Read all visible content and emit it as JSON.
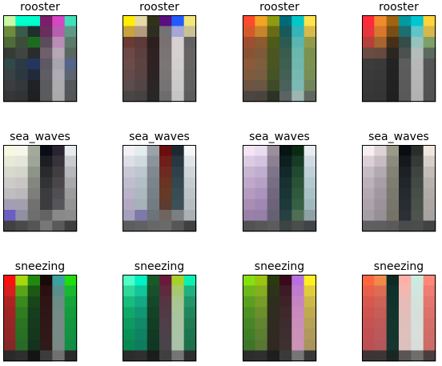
{
  "chart_data": [
    {
      "type": "heatmap",
      "title": "rooster",
      "columns": 6,
      "rows": 8,
      "cells": [
        [
          "#c9f7a5",
          "#00ffcc",
          "#00ffcc",
          "#7b1d6b",
          "#d645c4",
          "#40e0b9"
        ],
        [
          "#6e8c3b",
          "#3a5a4a",
          "#1f2f2f",
          "#6a2d5e",
          "#b65fb0",
          "#5d9a86"
        ],
        [
          "#4f6b39",
          "#3c4d3a",
          "#1d6b1f",
          "#5a4c5a",
          "#b98eb6",
          "#5b7a6a"
        ],
        [
          "#353c35",
          "#3f4641",
          "#2a2b2d",
          "#6e5f6a",
          "#b5a7b4",
          "#5a6760"
        ],
        [
          "#2f4a48",
          "#2d3a46",
          "#22365e",
          "#5d5862",
          "#a8a4ad",
          "#55648a"
        ],
        [
          "#384144",
          "#2b3840",
          "#22293a",
          "#5f5c64",
          "#adabb3",
          "#5c6570"
        ],
        [
          "#3b3d40",
          "#34383a",
          "#202124",
          "#5b5b5e",
          "#acacae",
          "#54585b"
        ],
        [
          "#353638",
          "#323335",
          "#1f2022",
          "#5a5b5c",
          "#a9aaab",
          "#545556"
        ]
      ]
    },
    {
      "type": "heatmap",
      "title": "rooster",
      "columns": 6,
      "rows": 8,
      "cells": [
        [
          "#ffee00",
          "#e6d9a8",
          "#2f3318",
          "#5a0e7f",
          "#1f5bff",
          "#f2e67a"
        ],
        [
          "#c9a23b",
          "#b49a7e",
          "#2c2e1f",
          "#747274",
          "#a4a7d8",
          "#c9c093"
        ],
        [
          "#6a3a34",
          "#5d3a39",
          "#2e1f1f",
          "#797071",
          "#d8cfd0",
          "#626060"
        ],
        [
          "#6e4846",
          "#5b403f",
          "#2f2222",
          "#7a7475",
          "#d5d0d1",
          "#656363"
        ],
        [
          "#6c4c4b",
          "#5b4342",
          "#2e2222",
          "#7b7676",
          "#d3cfcf",
          "#666363"
        ],
        [
          "#634b4b",
          "#584443",
          "#2c2424",
          "#787575",
          "#cfcccc",
          "#636161"
        ],
        [
          "#5b4d4d",
          "#524545",
          "#2b2525",
          "#757373",
          "#cbc9c9",
          "#606060"
        ],
        [
          "#4a4646",
          "#464242",
          "#282626",
          "#6e6d6d",
          "#c6c5c5",
          "#5c5c5c"
        ]
      ]
    },
    {
      "type": "heatmap",
      "title": "rooster",
      "columns": 6,
      "rows": 8,
      "cells": [
        [
          "#ff4a2e",
          "#f2a424",
          "#8f9b10",
          "#006a7a",
          "#00c8c8",
          "#ffe24d"
        ],
        [
          "#d6592b",
          "#c8842a",
          "#6a6b14",
          "#175a5b",
          "#35b4ba",
          "#d7b84a"
        ],
        [
          "#9e4e31",
          "#8e5a30",
          "#4e5a1a",
          "#2a5a50",
          "#5ab5b0",
          "#8f9b4a"
        ],
        [
          "#8a5233",
          "#7f5a38",
          "#4b5520",
          "#3a5c4d",
          "#6cb7ad",
          "#7b914d"
        ],
        [
          "#8a5a3a",
          "#7d5e3d",
          "#4a5522",
          "#3e5e50",
          "#70b8ae",
          "#7a9150"
        ],
        [
          "#7e5a3f",
          "#785d42",
          "#465326",
          "#445f55",
          "#75b9b1",
          "#788e55"
        ],
        [
          "#6d5443",
          "#6a5643",
          "#3f4b28",
          "#49615a",
          "#7bbab4",
          "#72855a"
        ],
        [
          "#4c4540",
          "#4a443f",
          "#2c3224",
          "#5a6462",
          "#9fb5b1",
          "#5f6760"
        ]
      ]
    },
    {
      "type": "heatmap",
      "title": "rooster",
      "columns": 6,
      "rows": 8,
      "cells": [
        [
          "#ff2a3a",
          "#f28a2e",
          "#a06410",
          "#009aa0",
          "#00c6cf",
          "#ffd33a"
        ],
        [
          "#e8343b",
          "#d8772e",
          "#7a4d14",
          "#1c6e73",
          "#5ec5c9",
          "#d8b64a"
        ],
        [
          "#b53f39",
          "#a8652f",
          "#463019",
          "#354c48",
          "#97c3be",
          "#7ea067"
        ],
        [
          "#6c4c42",
          "#67493d",
          "#2a2620",
          "#4b514f",
          "#b3bdbb",
          "#5b6a5e"
        ],
        [
          "#3d3c3d",
          "#3b3a3b",
          "#232323",
          "#5c5c5c",
          "#b8b8b8",
          "#555555"
        ],
        [
          "#3a3a3b",
          "#383839",
          "#222222",
          "#5b5b5b",
          "#b6b6b6",
          "#545454"
        ],
        [
          "#383839",
          "#363637",
          "#212121",
          "#5a5a5a",
          "#b4b4b4",
          "#535353"
        ],
        [
          "#363637",
          "#353536",
          "#202020",
          "#595959",
          "#b2b2b2",
          "#525252"
        ]
      ]
    },
    {
      "type": "heatmap",
      "title": "sea_waves",
      "columns": 6,
      "rows": 8,
      "cells": [
        [
          "#f8f8e2",
          "#f6f6e9",
          "#a6aa9d",
          "#0a0c17",
          "#2a2431",
          "#e7ebef"
        ],
        [
          "#e6ead6",
          "#e3e6d9",
          "#9ea69a",
          "#1d1e22",
          "#37333a",
          "#c8ccd0"
        ],
        [
          "#d8dacd",
          "#d4d6cc",
          "#8d9488",
          "#2a2a2c",
          "#413d41",
          "#b6b8bb"
        ],
        [
          "#cdcbc8",
          "#c7c6c4",
          "#84877f",
          "#333235",
          "#4a4649",
          "#a9a9ab"
        ],
        [
          "#c1bcc0",
          "#bdb8bc",
          "#7e7f7a",
          "#3c3b3e",
          "#524f52",
          "#9e9c9f"
        ],
        [
          "#a49eb4",
          "#a39fae",
          "#71726f",
          "#3c3c3f",
          "#56565a",
          "#949494"
        ],
        [
          "#6a5ec2",
          "#918fa4",
          "#6d6f6c",
          "#636363",
          "#898989",
          "#8c8c8c"
        ],
        [
          "#414141",
          "#4a4a4a",
          "#555555",
          "#777777",
          "#5a5a5a",
          "#3e3e3e"
        ]
      ]
    },
    {
      "type": "heatmap",
      "title": "sea_waves",
      "columns": 6,
      "rows": 8,
      "cells": [
        [
          "#f2f0f4",
          "#e3ecee",
          "#9aa2aa",
          "#6b0e0e",
          "#1e2a33",
          "#f4f6f8"
        ],
        [
          "#dcdfe6",
          "#cfd9de",
          "#8b949b",
          "#6f1e18",
          "#283742",
          "#dfe4e8"
        ],
        [
          "#c9c9d6",
          "#bcc7ce",
          "#80898f",
          "#6d2a20",
          "#2f4249",
          "#d0d6da"
        ],
        [
          "#c1bcd0",
          "#b3bfc6",
          "#7a848a",
          "#6a3322",
          "#34484f",
          "#c6cdd1"
        ],
        [
          "#bbb3c9",
          "#acb8bf",
          "#768086",
          "#663a27",
          "#384d54",
          "#bec5c9"
        ],
        [
          "#b3a9c2",
          "#a6b1b8",
          "#727c83",
          "#5c3c2e",
          "#3b5058",
          "#b7bec2"
        ],
        [
          "#a5a1bd",
          "#7d79a8",
          "#6c7379",
          "#6f6460",
          "#7b7f82",
          "#aab0b4"
        ],
        [
          "#5c5d5f",
          "#606163",
          "#666769",
          "#6a6a6a",
          "#555657",
          "#3f4041"
        ]
      ]
    },
    {
      "type": "heatmap",
      "title": "sea_waves",
      "columns": 6,
      "rows": 8,
      "cells": [
        [
          "#f4e4f4",
          "#e8dcf0",
          "#9b8f9e",
          "#081314",
          "#0a2a12",
          "#e7ecf0"
        ],
        [
          "#dccbe2",
          "#d4c2e0",
          "#8c8193",
          "#0e1f20",
          "#173b26",
          "#cfdbe1"
        ],
        [
          "#c8b5d2",
          "#c0aed0",
          "#7f7589",
          "#13282a",
          "#21492f",
          "#bed1d6"
        ],
        [
          "#bfa8c9",
          "#b6a0c6",
          "#786e83",
          "#173031",
          "#2a5237",
          "#b2c9ce"
        ],
        [
          "#b69bc0",
          "#ad94be",
          "#72687e",
          "#1a3536",
          "#305a3c",
          "#a9c2c6"
        ],
        [
          "#a98db5",
          "#a188b4",
          "#6c6379",
          "#1d393a",
          "#366042",
          "#a1b9bd"
        ],
        [
          "#9a80a8",
          "#9580a8",
          "#666073",
          "#28403f",
          "#506d56",
          "#8ea2a5"
        ],
        [
          "#525154",
          "#575659",
          "#5c5b5e",
          "#3e4444",
          "#4a4f4b",
          "#414446"
        ]
      ]
    },
    {
      "type": "heatmap",
      "title": "sea_waves",
      "columns": 6,
      "rows": 8,
      "cells": [
        [
          "#f7eef2",
          "#dfd2d6",
          "#9b9a88",
          "#0b0d13",
          "#2a2e2a",
          "#f0e6de"
        ],
        [
          "#dccfd6",
          "#c6bcc2",
          "#8d8b7e",
          "#16191c",
          "#353a36",
          "#d7cec8"
        ],
        [
          "#c6bcc4",
          "#b2aab0",
          "#848276",
          "#1d2024",
          "#3e443f",
          "#c3bcb7"
        ],
        [
          "#bab1b9",
          "#a79fa6",
          "#7f7d72",
          "#222529",
          "#434a44",
          "#b8b2ae"
        ],
        [
          "#b2a9b2",
          "#a098a0",
          "#7b796e",
          "#26292d",
          "#474e48",
          "#b1aca8"
        ],
        [
          "#aca3ac",
          "#9b939b",
          "#78766b",
          "#292c30",
          "#4a514b",
          "#aca7a4"
        ],
        [
          "#a69ea6",
          "#969096",
          "#757368",
          "#2c2f33",
          "#4d544e",
          "#a7a3a0"
        ],
        [
          "#5f5e60",
          "#5e5d5f",
          "#5a5a59",
          "#494b4d",
          "#4a4d4b",
          "#414243"
        ]
      ]
    },
    {
      "type": "heatmap",
      "title": "sneezing",
      "columns": 6,
      "rows": 8,
      "cells": [
        [
          "#ff1010",
          "#a8d810",
          "#1f8a0e",
          "#1a0a0a",
          "#3aa0a0",
          "#1edc10"
        ],
        [
          "#d81e1e",
          "#5aa41a",
          "#1c5a14",
          "#2a1010",
          "#5a8e8a",
          "#18b82e"
        ],
        [
          "#b02222",
          "#3a8a1e",
          "#18461a",
          "#2e1414",
          "#6c8c86",
          "#14a43a"
        ],
        [
          "#a02424",
          "#307c20",
          "#163e1c",
          "#2f1616",
          "#738b86",
          "#139b3e"
        ],
        [
          "#972626",
          "#2b7522",
          "#153a1d",
          "#301717",
          "#768a86",
          "#129640"
        ],
        [
          "#902727",
          "#287023",
          "#14371e",
          "#301818",
          "#788a86",
          "#129242"
        ],
        [
          "#852727",
          "#2a6a26",
          "#13331f",
          "#2f1919",
          "#7a8985",
          "#138d44"
        ],
        [
          "#2a2a2a",
          "#2e2e2e",
          "#141414",
          "#3c3c3c",
          "#707070",
          "#2a2a2a"
        ]
      ]
    },
    {
      "type": "heatmap",
      "title": "sneezing",
      "columns": 6,
      "rows": 8,
      "cells": [
        [
          "#4fffc6",
          "#00f2c4",
          "#1a5a2a",
          "#6a1a3a",
          "#a8d02a",
          "#0af0b0"
        ],
        [
          "#2fd89a",
          "#12c49a",
          "#17502a",
          "#5e2a3e",
          "#a8c870",
          "#1fb07f"
        ],
        [
          "#19bc7c",
          "#14a884",
          "#154829",
          "#573442",
          "#a9c690",
          "#229468"
        ],
        [
          "#10a86a",
          "#129674",
          "#134227",
          "#523a45",
          "#a9c59c",
          "#21855c"
        ],
        [
          "#0c9a60",
          "#118a6a",
          "#123e26",
          "#4f3e47",
          "#a9c4a2",
          "#1f7c55"
        ],
        [
          "#0a9158",
          "#108264",
          "#113a25",
          "#4c4148",
          "#a9c4a6",
          "#1d7550"
        ],
        [
          "#098952",
          "#0f7c5f",
          "#103724",
          "#4a4349",
          "#a9c3a8",
          "#1c704c"
        ],
        [
          "#2c2c2c",
          "#2e302e",
          "#1a1d1b",
          "#3f3f3f",
          "#757575",
          "#2d2f2e"
        ]
      ]
    },
    {
      "type": "heatmap",
      "title": "sneezing",
      "columns": 6,
      "rows": 8,
      "cells": [
        [
          "#86e010",
          "#9ac410",
          "#2a3a10",
          "#3a0a1a",
          "#b870e0",
          "#ffee22"
        ],
        [
          "#6cb81a",
          "#84ad20",
          "#2c3318",
          "#3c1a26",
          "#c07ccc",
          "#e0cc3a"
        ],
        [
          "#5aa020",
          "#769d28",
          "#2d2f1c",
          "#3d2329",
          "#c684c4",
          "#ccb848"
        ],
        [
          "#4e9024",
          "#6a8f2c",
          "#2e2d1f",
          "#3e282c",
          "#c98abe",
          "#bfaa50"
        ],
        [
          "#478626",
          "#62852f",
          "#2f2b21",
          "#3e2b2e",
          "#cb8ebb",
          "#b6a156"
        ],
        [
          "#427e28",
          "#5c7e31",
          "#2f2a22",
          "#3f2e2f",
          "#cc91b8",
          "#af9a5a"
        ],
        [
          "#3e7629",
          "#577733",
          "#302923",
          "#3f3030",
          "#cd93b6",
          "#a9945d"
        ],
        [
          "#2d2d2d",
          "#2f2f2f",
          "#1e1e1e",
          "#3a3a3a",
          "#767676",
          "#383838"
        ]
      ]
    },
    {
      "type": "heatmap",
      "title": "sneezing",
      "columns": 6,
      "rows": 8,
      "cells": [
        [
          "#ff6640",
          "#f08a4a",
          "#0d2a24",
          "#ffb0a8",
          "#c8ece0",
          "#ff8878"
        ],
        [
          "#e85f4a",
          "#dc6c52",
          "#10302a",
          "#f0b8b0",
          "#d0e6de",
          "#f07c72"
        ],
        [
          "#d8584e",
          "#ce6256",
          "#12332c",
          "#e8bcb6",
          "#d4e2dc",
          "#e4766e"
        ],
        [
          "#ce5450",
          "#c55d58",
          "#13342d",
          "#e3beb9",
          "#d6e0db",
          "#dc726b"
        ],
        [
          "#c75252",
          "#bf5a59",
          "#14352e",
          "#e0bfbb",
          "#d7dfda",
          "#d66f69"
        ],
        [
          "#c15052",
          "#ba585a",
          "#14352e",
          "#dec0bc",
          "#d8dedb",
          "#d16d68"
        ],
        [
          "#bb4f52",
          "#b5575a",
          "#15362f",
          "#dcc0bd",
          "#d8dddb",
          "#cc6b67"
        ],
        [
          "#3d3535",
          "#3e3636",
          "#1a2624",
          "#5a5454",
          "#6e6e6c",
          "#4a3e3d"
        ]
      ]
    }
  ]
}
